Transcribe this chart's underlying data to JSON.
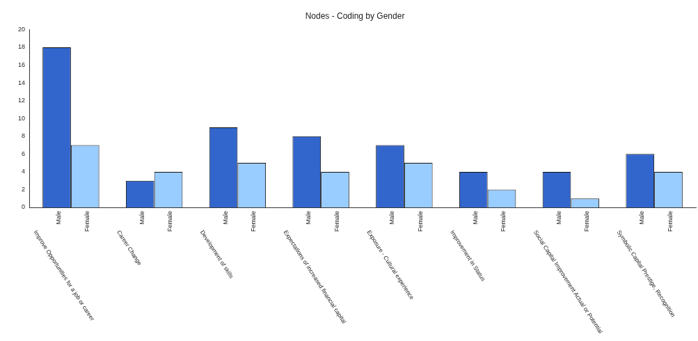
{
  "chart_data": {
    "type": "bar",
    "title": "Nodes - Coding by Gender",
    "categories": [
      "Improve Opportunities for a job or career",
      "Career Change",
      "Development of skills",
      "Expectations of increased financial capital",
      "Exposure - Cultural experience",
      "Improvement in Status",
      "Social Capital Improvement Actual or Potential",
      "Symbolic Capital Prestige, Recognition"
    ],
    "series": [
      {
        "name": "Male",
        "color": "#3366cc",
        "values": [
          18,
          3,
          9,
          8,
          7,
          4,
          4,
          6
        ]
      },
      {
        "name": "Female",
        "color": "#99ccff",
        "values": [
          7,
          4,
          5,
          4,
          5,
          2,
          1,
          4
        ]
      }
    ],
    "ylim": [
      0,
      20
    ],
    "yticks": [
      0,
      2,
      4,
      6,
      8,
      10,
      12,
      14,
      16,
      18,
      20
    ],
    "grid": false,
    "legend": false
  }
}
